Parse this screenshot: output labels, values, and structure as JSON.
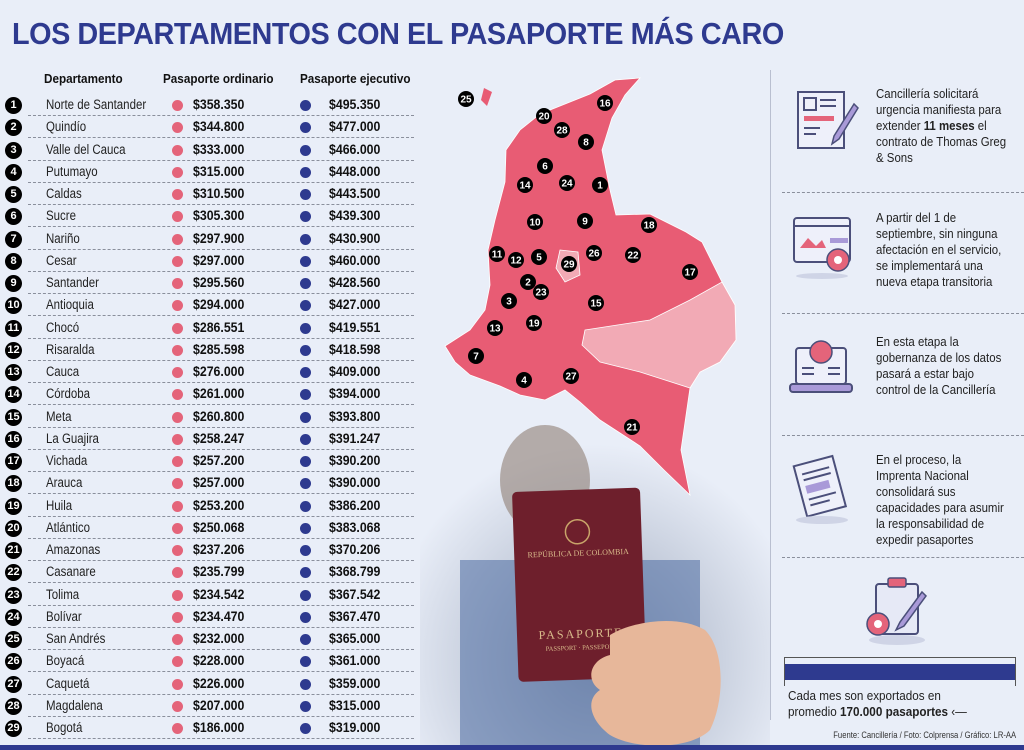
{
  "title": "LOS DEPARTAMENTOS CON EL PASAPORTE MÁS CARO",
  "colors": {
    "title": "#2e3a8f",
    "ordinario": "#e4647a",
    "ejecutivo": "#2e3a8f",
    "map": "#e85c74",
    "map_light": "#f2aab5"
  },
  "chart_data": {
    "type": "table",
    "columns": [
      "Departamento",
      "Pasaporte ordinario",
      "Pasaporte ejecutivo"
    ],
    "rows": [
      {
        "rank": "1",
        "name": "Norte de Santander",
        "ordinario": "$358.350",
        "ejecutivo": "$495.350"
      },
      {
        "rank": "2",
        "name": "Quindío",
        "ordinario": "$344.800",
        "ejecutivo": "$477.000"
      },
      {
        "rank": "3",
        "name": "Valle del Cauca",
        "ordinario": "$333.000",
        "ejecutivo": "$466.000"
      },
      {
        "rank": "4",
        "name": "Putumayo",
        "ordinario": "$315.000",
        "ejecutivo": "$448.000"
      },
      {
        "rank": "5",
        "name": "Caldas",
        "ordinario": "$310.500",
        "ejecutivo": "$443.500"
      },
      {
        "rank": "6",
        "name": "Sucre",
        "ordinario": "$305.300",
        "ejecutivo": "$439.300"
      },
      {
        "rank": "7",
        "name": "Nariño",
        "ordinario": "$297.900",
        "ejecutivo": "$430.900"
      },
      {
        "rank": "8",
        "name": "Cesar",
        "ordinario": "$297.000",
        "ejecutivo": "$460.000"
      },
      {
        "rank": "9",
        "name": "Santander",
        "ordinario": "$295.560",
        "ejecutivo": "$428.560"
      },
      {
        "rank": "10",
        "name": "Antioquia",
        "ordinario": "$294.000",
        "ejecutivo": "$427.000"
      },
      {
        "rank": "11",
        "name": "Chocó",
        "ordinario": "$286.551",
        "ejecutivo": "$419.551"
      },
      {
        "rank": "12",
        "name": "Risaralda",
        "ordinario": "$285.598",
        "ejecutivo": "$418.598"
      },
      {
        "rank": "13",
        "name": "Cauca",
        "ordinario": "$276.000",
        "ejecutivo": "$409.000"
      },
      {
        "rank": "14",
        "name": "Córdoba",
        "ordinario": "$261.000",
        "ejecutivo": "$394.000"
      },
      {
        "rank": "15",
        "name": "Meta",
        "ordinario": "$260.800",
        "ejecutivo": "$393.800"
      },
      {
        "rank": "16",
        "name": "La Guajira",
        "ordinario": "$258.247",
        "ejecutivo": "$391.247"
      },
      {
        "rank": "17",
        "name": "Vichada",
        "ordinario": "$257.200",
        "ejecutivo": "$390.200"
      },
      {
        "rank": "18",
        "name": "Arauca",
        "ordinario": "$257.000",
        "ejecutivo": "$390.000"
      },
      {
        "rank": "19",
        "name": "Huila",
        "ordinario": "$253.200",
        "ejecutivo": "$386.200"
      },
      {
        "rank": "20",
        "name": "Atlántico",
        "ordinario": "$250.068",
        "ejecutivo": "$383.068"
      },
      {
        "rank": "21",
        "name": "Amazonas",
        "ordinario": "$237.206",
        "ejecutivo": "$370.206"
      },
      {
        "rank": "22",
        "name": "Casanare",
        "ordinario": "$235.799",
        "ejecutivo": "$368.799"
      },
      {
        "rank": "23",
        "name": "Tolima",
        "ordinario": "$234.542",
        "ejecutivo": "$367.542"
      },
      {
        "rank": "24",
        "name": "Bolívar",
        "ordinario": "$234.470",
        "ejecutivo": "$367.470"
      },
      {
        "rank": "25",
        "name": "San Andrés",
        "ordinario": "$232.000",
        "ejecutivo": "$365.000"
      },
      {
        "rank": "26",
        "name": "Boyacá",
        "ordinario": "$228.000",
        "ejecutivo": "$361.000"
      },
      {
        "rank": "27",
        "name": "Caquetá",
        "ordinario": "$226.000",
        "ejecutivo": "$359.000"
      },
      {
        "rank": "28",
        "name": "Magdalena",
        "ordinario": "$207.000",
        "ejecutivo": "$315.000"
      },
      {
        "rank": "29",
        "name": "Bogotá",
        "ordinario": "$186.000",
        "ejecutivo": "$319.000"
      }
    ]
  },
  "passport": {
    "country": "REPÚBLICA DE COLOMBIA",
    "label": "PASAPORTE",
    "sublabel": "PASSPORT · PASSEPORT"
  },
  "notes": [
    {
      "icon": "contract-signing-icon",
      "pre": "Cancillería solicitará urgencia manifiesta para extender ",
      "bold": "11 meses",
      "post": " el contrato de Thomas Greg & Sons"
    },
    {
      "icon": "web-settings-icon",
      "pre": "A partir del 1 de septiembre, sin ninguna afectación en el servicio, se implementará una nueva etapa transitoria",
      "bold": "",
      "post": ""
    },
    {
      "icon": "laptop-idea-icon",
      "pre": "En esta etapa  la gobernanza de los datos pasará a estar bajo control de la Cancillería",
      "bold": "",
      "post": ""
    },
    {
      "icon": "documents-icon",
      "pre": "En el proceso, la Imprenta Nacional consolidará sus capacidades para asumir la responsabilidad de expedir pasaportes",
      "bold": "",
      "post": ""
    }
  ],
  "stat": {
    "icon": "clipboard-gear-icon",
    "line1": "Cada mes son exportados en",
    "pre": "promedio ",
    "bold": "170.000 pasaportes"
  },
  "source": "Fuente: Cancillería / Foto: Colprensa / Gráfico: LR-AA"
}
